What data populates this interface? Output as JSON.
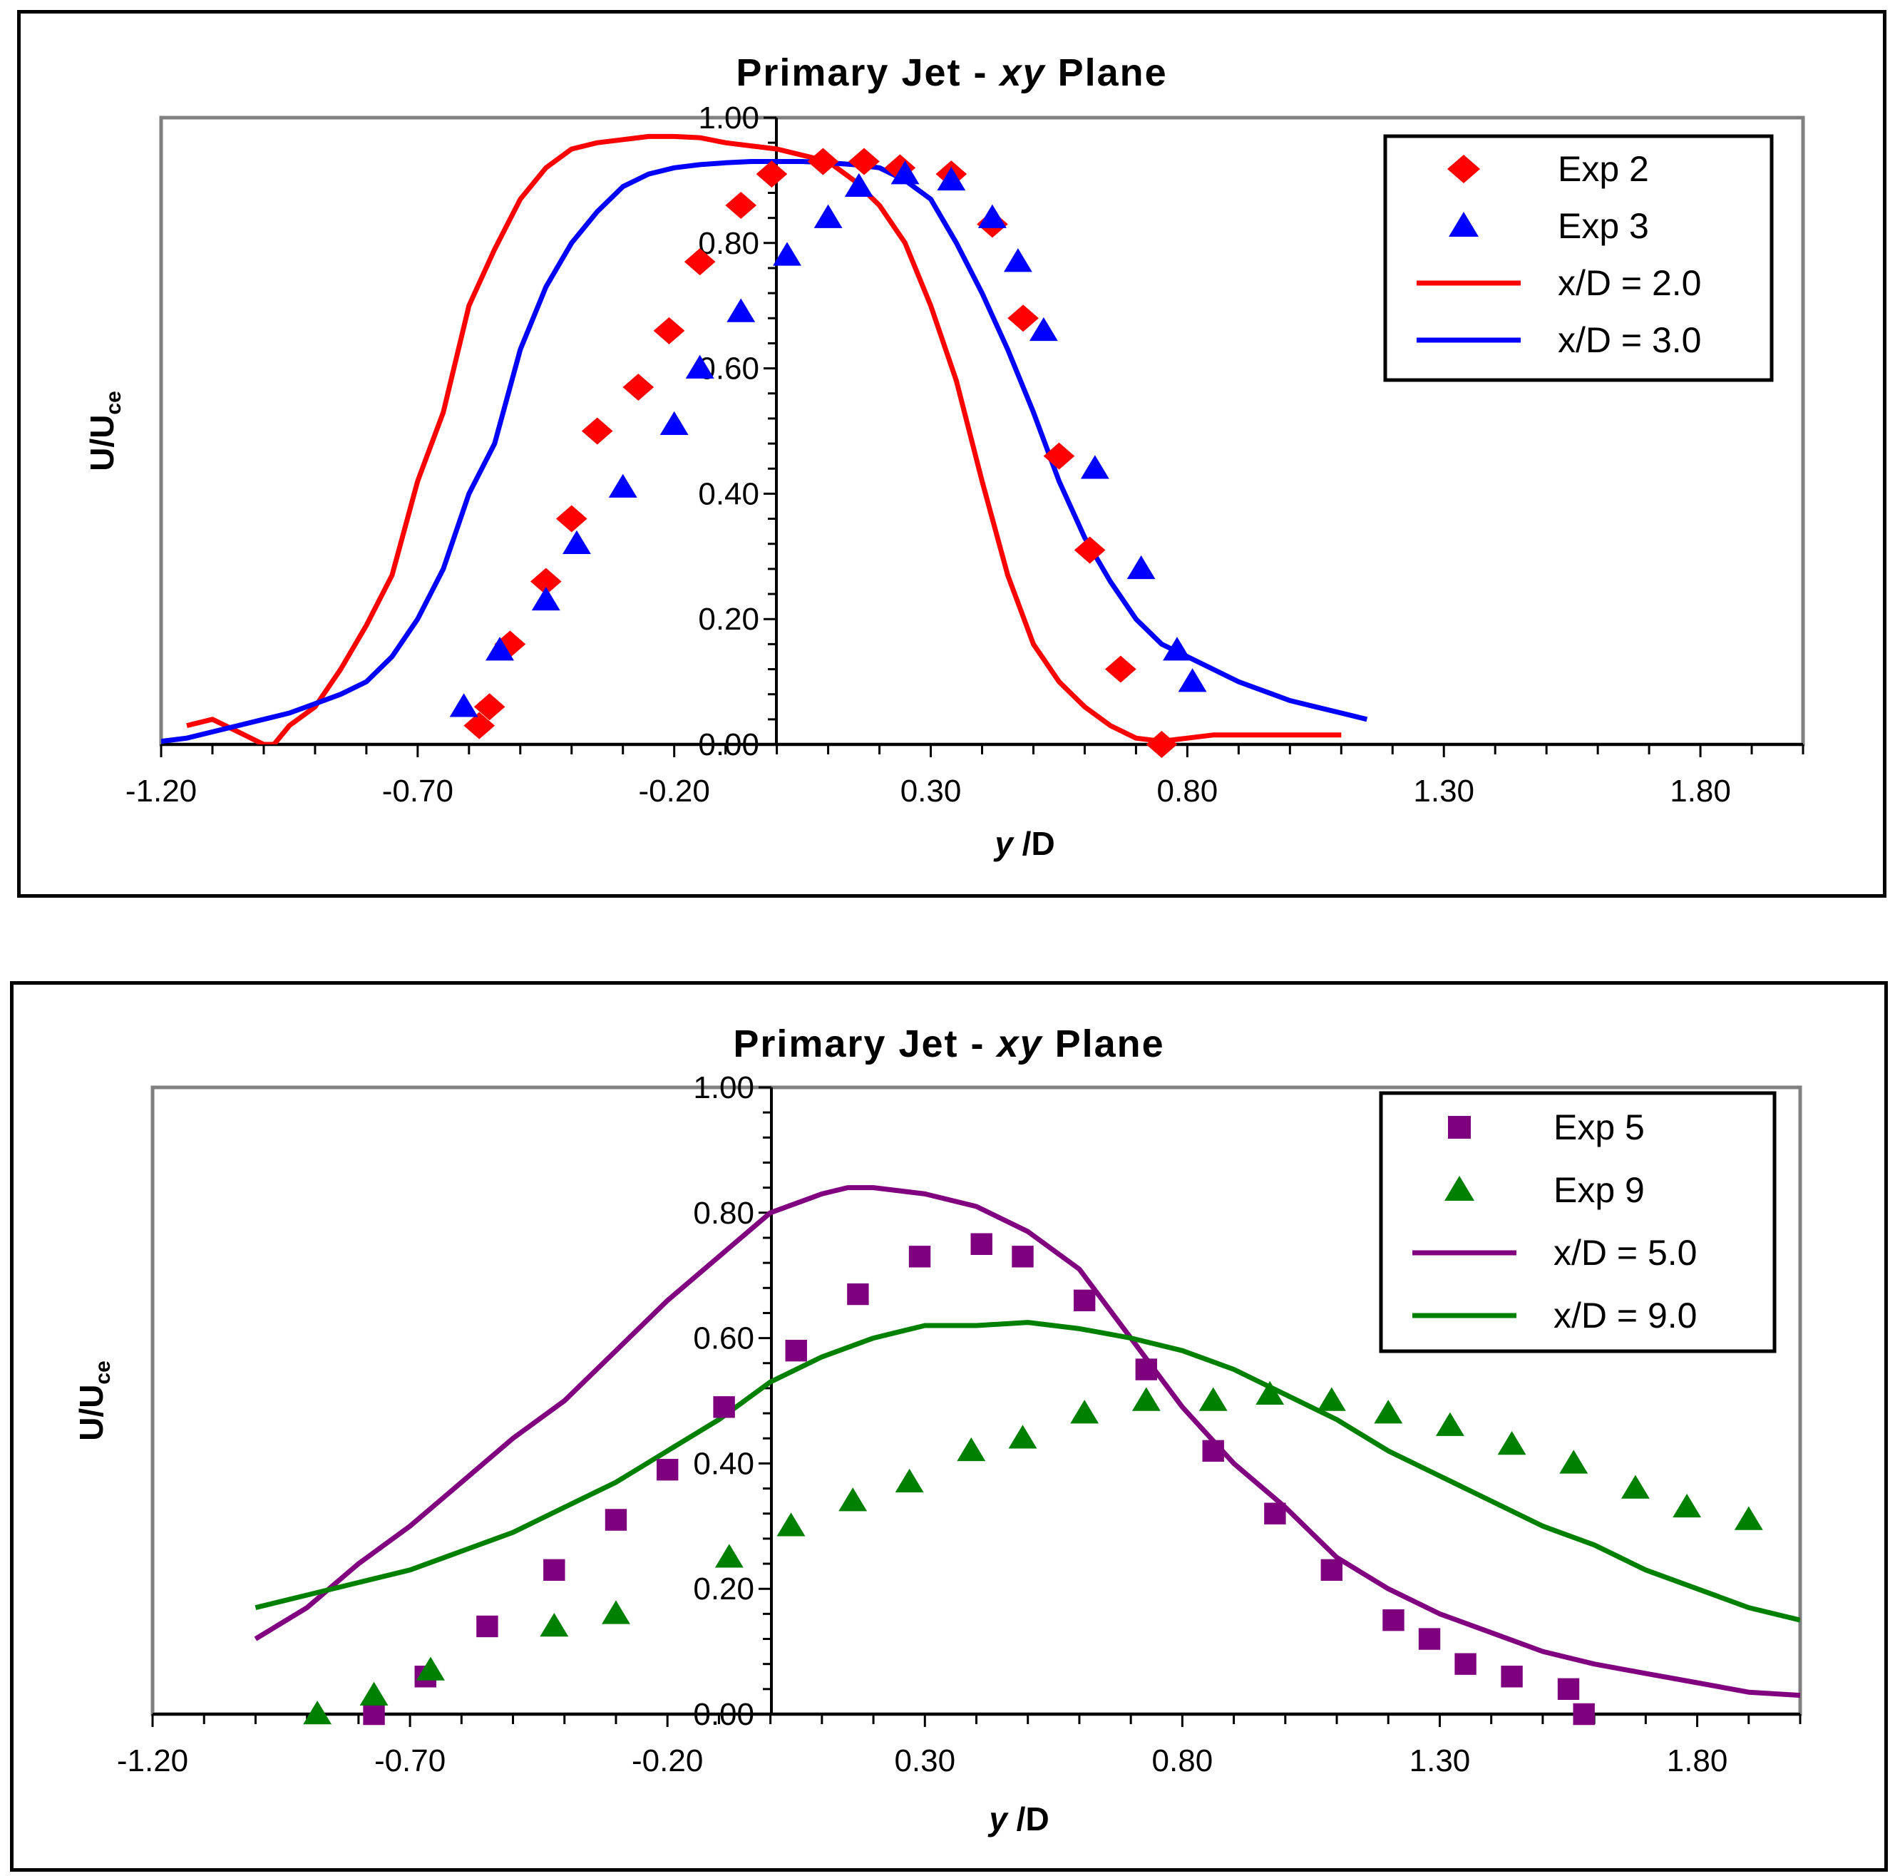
{
  "chart_data": [
    {
      "type": "scatter",
      "title_prefix": "Primary Jet - ",
      "title_italic": "xy",
      "title_suffix": " Plane",
      "xlabel_italic": "y",
      "xlabel_rest": "/D",
      "ylabel_main": "U/U",
      "ylabel_sub": "ce",
      "xlim": [
        -1.2,
        2.0
      ],
      "ylim": [
        0.0,
        1.0
      ],
      "xticks": [
        -1.2,
        -0.7,
        -0.2,
        0.3,
        0.8,
        1.3,
        1.8
      ],
      "xtick_labels": [
        "-1.20",
        "-0.70",
        "-0.20",
        "0.30",
        "0.80",
        "1.30",
        "1.80"
      ],
      "yticks": [
        0.0,
        0.2,
        0.4,
        0.6,
        0.8,
        1.0
      ],
      "ytick_labels": [
        "0.00",
        "0.20",
        "0.40",
        "0.60",
        "0.80",
        "1.00"
      ],
      "legend_position": "top-right",
      "series": [
        {
          "name": "Exp 2",
          "kind": "marker",
          "marker": "diamond",
          "color": "#ff0000",
          "x": [
            -0.58,
            -0.56,
            -0.52,
            -0.45,
            -0.4,
            -0.35,
            -0.27,
            -0.21,
            -0.15,
            -0.07,
            -0.01,
            0.09,
            0.17,
            0.24,
            0.34,
            0.42,
            0.48,
            0.55,
            0.61,
            0.67,
            0.75
          ],
          "y": [
            0.03,
            0.06,
            0.16,
            0.26,
            0.36,
            0.5,
            0.57,
            0.66,
            0.77,
            0.86,
            0.91,
            0.93,
            0.93,
            0.92,
            0.91,
            0.83,
            0.68,
            0.46,
            0.31,
            0.12,
            0.0
          ]
        },
        {
          "name": "Exp 3",
          "kind": "marker",
          "marker": "triangle",
          "color": "#0000ff",
          "x": [
            -0.61,
            -0.54,
            -0.45,
            -0.39,
            -0.3,
            -0.2,
            -0.15,
            -0.07,
            0.02,
            0.1,
            0.16,
            0.25,
            0.34,
            0.42,
            0.47,
            0.52,
            0.62,
            0.71,
            0.78,
            0.81
          ],
          "y": [
            0.06,
            0.15,
            0.23,
            0.32,
            0.41,
            0.51,
            0.6,
            0.69,
            0.78,
            0.84,
            0.89,
            0.91,
            0.9,
            0.84,
            0.77,
            0.66,
            0.44,
            0.28,
            0.15,
            0.1
          ]
        },
        {
          "name": "x/D = 2.0",
          "kind": "line",
          "color": "#ff0000",
          "x": [
            -1.15,
            -1.1,
            -1.05,
            -1.0,
            -0.98,
            -0.95,
            -0.9,
            -0.85,
            -0.8,
            -0.75,
            -0.7,
            -0.65,
            -0.6,
            -0.55,
            -0.5,
            -0.45,
            -0.4,
            -0.35,
            -0.3,
            -0.25,
            -0.2,
            -0.15,
            -0.1,
            -0.05,
            0.0,
            0.05,
            0.1,
            0.15,
            0.2,
            0.25,
            0.3,
            0.35,
            0.4,
            0.45,
            0.5,
            0.55,
            0.6,
            0.65,
            0.7,
            0.75,
            0.8,
            0.85,
            0.9,
            0.95,
            1.0,
            1.05,
            1.1
          ],
          "y": [
            0.03,
            0.04,
            0.02,
            0.0,
            0.0,
            0.03,
            0.06,
            0.12,
            0.19,
            0.27,
            0.42,
            0.53,
            0.7,
            0.79,
            0.87,
            0.92,
            0.95,
            0.96,
            0.965,
            0.97,
            0.97,
            0.968,
            0.96,
            0.955,
            0.95,
            0.94,
            0.93,
            0.9,
            0.86,
            0.8,
            0.7,
            0.58,
            0.42,
            0.27,
            0.16,
            0.1,
            0.06,
            0.03,
            0.01,
            0.005,
            0.01,
            0.015,
            0.015,
            0.015,
            0.015,
            0.015,
            0.015
          ]
        },
        {
          "name": "x/D = 3.0",
          "kind": "line",
          "color": "#0000ff",
          "x": [
            -1.2,
            -1.15,
            -1.1,
            -1.05,
            -1.0,
            -0.95,
            -0.9,
            -0.85,
            -0.8,
            -0.75,
            -0.7,
            -0.65,
            -0.6,
            -0.55,
            -0.5,
            -0.45,
            -0.4,
            -0.35,
            -0.3,
            -0.25,
            -0.2,
            -0.15,
            -0.1,
            -0.05,
            0.0,
            0.05,
            0.1,
            0.15,
            0.2,
            0.25,
            0.3,
            0.35,
            0.4,
            0.45,
            0.5,
            0.55,
            0.6,
            0.65,
            0.7,
            0.75,
            0.8,
            0.85,
            0.9,
            0.95,
            1.0,
            1.05,
            1.1,
            1.15
          ],
          "y": [
            0.005,
            0.01,
            0.02,
            0.03,
            0.04,
            0.05,
            0.065,
            0.08,
            0.1,
            0.14,
            0.2,
            0.28,
            0.4,
            0.48,
            0.63,
            0.73,
            0.8,
            0.85,
            0.89,
            0.91,
            0.92,
            0.925,
            0.928,
            0.93,
            0.93,
            0.93,
            0.928,
            0.925,
            0.92,
            0.9,
            0.87,
            0.8,
            0.72,
            0.63,
            0.53,
            0.42,
            0.33,
            0.26,
            0.2,
            0.16,
            0.14,
            0.12,
            0.1,
            0.085,
            0.07,
            0.06,
            0.05,
            0.04
          ]
        }
      ]
    },
    {
      "type": "scatter",
      "title_prefix": "Primary Jet - ",
      "title_italic": "xy",
      "title_suffix": " Plane",
      "xlabel_italic": "y",
      "xlabel_rest": "/D",
      "ylabel_main": "U/U",
      "ylabel_sub": "ce",
      "xlim": [
        -1.2,
        2.0
      ],
      "ylim": [
        0.0,
        1.0
      ],
      "xticks": [
        -1.2,
        -0.7,
        -0.2,
        0.3,
        0.8,
        1.3,
        1.8
      ],
      "xtick_labels": [
        "-1.20",
        "-0.70",
        "-0.20",
        "0.30",
        "0.80",
        "1.30",
        "1.80"
      ],
      "yticks": [
        0.0,
        0.2,
        0.4,
        0.6,
        0.8,
        1.0
      ],
      "ytick_labels": [
        "0.00",
        "0.20",
        "0.40",
        "0.60",
        "0.80",
        "1.00"
      ],
      "legend_position": "top-right",
      "series": [
        {
          "name": "Exp 5",
          "kind": "marker",
          "marker": "square",
          "color": "#7f007f",
          "x": [
            -0.77,
            -0.67,
            -0.55,
            -0.42,
            -0.3,
            -0.2,
            -0.09,
            0.05,
            0.17,
            0.29,
            0.41,
            0.49,
            0.61,
            0.73,
            0.86,
            0.98,
            1.09,
            1.21,
            1.28,
            1.35,
            1.44,
            1.55,
            1.58
          ],
          "y": [
            0.0,
            0.06,
            0.14,
            0.23,
            0.31,
            0.39,
            0.49,
            0.58,
            0.67,
            0.73,
            0.75,
            0.73,
            0.66,
            0.55,
            0.42,
            0.32,
            0.23,
            0.15,
            0.12,
            0.08,
            0.06,
            0.04,
            0.0
          ]
        },
        {
          "name": "Exp 9",
          "kind": "marker",
          "marker": "triangle",
          "color": "#008000",
          "x": [
            -0.88,
            -0.77,
            -0.66,
            -0.42,
            -0.3,
            -0.08,
            0.04,
            0.16,
            0.27,
            0.39,
            0.49,
            0.61,
            0.73,
            0.86,
            0.97,
            1.09,
            1.2,
            1.32,
            1.44,
            1.56,
            1.68,
            1.78,
            1.9
          ],
          "y": [
            0.0,
            0.03,
            0.07,
            0.14,
            0.16,
            0.25,
            0.3,
            0.34,
            0.37,
            0.42,
            0.44,
            0.48,
            0.5,
            0.5,
            0.51,
            0.5,
            0.48,
            0.46,
            0.43,
            0.4,
            0.36,
            0.33,
            0.31
          ]
        },
        {
          "name": "x/D = 5.0",
          "kind": "line",
          "color": "#800080",
          "x": [
            -1.0,
            -0.9,
            -0.8,
            -0.7,
            -0.6,
            -0.5,
            -0.4,
            -0.3,
            -0.2,
            -0.1,
            0.0,
            0.1,
            0.15,
            0.2,
            0.3,
            0.4,
            0.5,
            0.6,
            0.7,
            0.8,
            0.9,
            1.0,
            1.1,
            1.2,
            1.3,
            1.4,
            1.5,
            1.6,
            1.7,
            1.8,
            1.9,
            2.0
          ],
          "y": [
            0.12,
            0.17,
            0.24,
            0.3,
            0.37,
            0.44,
            0.5,
            0.58,
            0.66,
            0.73,
            0.8,
            0.83,
            0.84,
            0.84,
            0.83,
            0.81,
            0.77,
            0.71,
            0.6,
            0.49,
            0.4,
            0.33,
            0.25,
            0.2,
            0.16,
            0.13,
            0.1,
            0.08,
            0.065,
            0.05,
            0.035,
            0.03
          ]
        },
        {
          "name": "x/D = 9.0",
          "kind": "line",
          "color": "#008000",
          "x": [
            -1.0,
            -0.9,
            -0.8,
            -0.7,
            -0.6,
            -0.5,
            -0.4,
            -0.3,
            -0.2,
            -0.1,
            0.0,
            0.1,
            0.2,
            0.3,
            0.4,
            0.5,
            0.6,
            0.7,
            0.8,
            0.9,
            1.0,
            1.1,
            1.2,
            1.3,
            1.4,
            1.5,
            1.6,
            1.7,
            1.8,
            1.9,
            2.0
          ],
          "y": [
            0.17,
            0.19,
            0.21,
            0.23,
            0.26,
            0.29,
            0.33,
            0.37,
            0.42,
            0.47,
            0.53,
            0.57,
            0.6,
            0.62,
            0.62,
            0.625,
            0.615,
            0.6,
            0.58,
            0.55,
            0.51,
            0.47,
            0.42,
            0.38,
            0.34,
            0.3,
            0.27,
            0.23,
            0.2,
            0.17,
            0.15
          ]
        }
      ]
    }
  ]
}
